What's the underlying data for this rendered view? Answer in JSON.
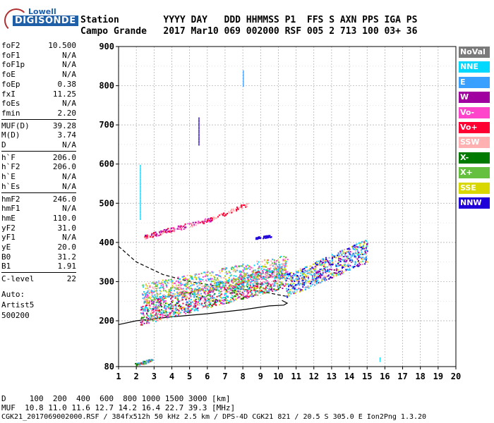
{
  "logo": {
    "line1": "Lowell",
    "line2": "DIGISONDE"
  },
  "header": {
    "labels_row": "Station        YYYY DAY   DDD HHMMSS P1  FFS S AXN PPS IGA PS",
    "values_row": "Campo Grande   2017 Mar10 069 002000 RSF 005 2 713 100 03+ 36"
  },
  "params": [
    {
      "label": "foF2",
      "value": "10.500"
    },
    {
      "label": "foF1",
      "value": "N/A"
    },
    {
      "label": "foF1p",
      "value": "N/A"
    },
    {
      "label": "foE",
      "value": "N/A"
    },
    {
      "label": "foEp",
      "value": "0.38"
    },
    {
      "label": "fxI",
      "value": "11.25"
    },
    {
      "label": "foEs",
      "value": "N/A"
    },
    {
      "label": "fmin",
      "value": "2.20"
    },
    {
      "label": "MUF(D)",
      "value": "39.28"
    },
    {
      "label": "M(D)",
      "value": "3.74"
    },
    {
      "label": "D",
      "value": "N/A"
    },
    {
      "label": "h`F",
      "value": "206.0"
    },
    {
      "label": "h`F2",
      "value": "206.0"
    },
    {
      "label": "h`E",
      "value": "N/A"
    },
    {
      "label": "h`Es",
      "value": "N/A"
    },
    {
      "label": "hmF2",
      "value": "246.0"
    },
    {
      "label": "hmF1",
      "value": "N/A"
    },
    {
      "label": "hmE",
      "value": "110.0"
    },
    {
      "label": "yF2",
      "value": "31.0"
    },
    {
      "label": "yF1",
      "value": "N/A"
    },
    {
      "label": "yE",
      "value": "20.0"
    },
    {
      "label": "B0",
      "value": "31.2"
    },
    {
      "label": "B1",
      "value": "1.91"
    },
    {
      "label": "C-level",
      "value": "22"
    }
  ],
  "autoscale": {
    "line1": "Auto:",
    "line2": "Artist5",
    "line3": "500200"
  },
  "legend": [
    {
      "name": "NoVal",
      "color": "#7a7a7a"
    },
    {
      "name": "NNE",
      "color": "#00d8ff"
    },
    {
      "name": "E",
      "color": "#3aa0ff"
    },
    {
      "name": "W",
      "color": "#a000a0"
    },
    {
      "name": "Vo-",
      "color": "#ff44cc"
    },
    {
      "name": "Vo+",
      "color": "#ff0033"
    },
    {
      "name": "SSW",
      "color": "#ffb0b0"
    },
    {
      "name": "X-",
      "color": "#007a00"
    },
    {
      "name": "X+",
      "color": "#66c040"
    },
    {
      "name": "SSE",
      "color": "#d8d800"
    },
    {
      "name": "NNW",
      "color": "#2000d8"
    }
  ],
  "footer": {
    "d_row": "D     100  200  400  600  800 1000 1500 3000 [km]",
    "muf_row": "MUF  10.8 11.0 11.6 12.7 14.2 16.4 22.7 39.3 [MHz]",
    "file_row": "CGK21_2017069002000.RSF / 384fx512h 50 kHz 2.5 km / DPS-4D CGK21 821 / 20.5 S 305.0 E Ion2Png 1.3.20"
  },
  "chart_data": {
    "type": "scatter",
    "xlim": [
      1,
      20
    ],
    "ylim": [
      80,
      900
    ],
    "xticks": [
      1,
      2,
      3,
      4,
      5,
      6,
      7,
      8,
      9,
      10,
      11,
      12,
      13,
      14,
      15,
      16,
      17,
      18,
      19,
      20
    ],
    "yticks": [
      80,
      200,
      300,
      400,
      500,
      600,
      700,
      800,
      900
    ],
    "grid": true,
    "legend_position": "right",
    "clusters": [
      {
        "name": "F2 trace main",
        "x": [
          2.2,
          10.4
        ],
        "y": [
          205,
          300
        ],
        "band": [
          -15,
          45
        ],
        "count": 1400,
        "colors": [
          "#ffb0b0",
          "#ff0033",
          "#ff44cc",
          "#a000a0",
          "#007a00",
          "#66c040",
          "#d8d800",
          "#3aa0ff",
          "#00d8ff"
        ]
      },
      {
        "name": "Upper F2 band",
        "x": [
          2.3,
          10.5
        ],
        "y": [
          255,
          330
        ],
        "band": [
          -10,
          40
        ],
        "count": 700,
        "colors": [
          "#ffb0b0",
          "#00d8ff",
          "#3aa0ff",
          "#d8d800",
          "#66c040",
          "#ff44cc"
        ]
      },
      {
        "name": "Spread F high freq",
        "x": [
          10.4,
          15.0
        ],
        "y": [
          290,
          380
        ],
        "band": [
          -30,
          30
        ],
        "count": 700,
        "colors": [
          "#ffb0b0",
          "#2000d8",
          "#a000a0",
          "#00d8ff",
          "#3aa0ff",
          "#d8d800"
        ]
      },
      {
        "name": "Second hop",
        "x": [
          2.4,
          6.2
        ],
        "y": [
          415,
          460
        ],
        "band": [
          -6,
          6
        ],
        "count": 160,
        "colors": [
          "#ff0033",
          "#ff44cc",
          "#ffb0b0",
          "#a000a0"
        ]
      },
      {
        "name": "Second hop ext",
        "x": [
          6.2,
          8.3
        ],
        "y": [
          460,
          500
        ],
        "band": [
          -5,
          5
        ],
        "count": 60,
        "colors": [
          "#ff0033",
          "#ffb0b0"
        ]
      },
      {
        "name": "Blue segment",
        "x": [
          8.7,
          9.6
        ],
        "y": [
          412,
          418
        ],
        "band": [
          -3,
          3
        ],
        "count": 40,
        "colors": [
          "#2000d8"
        ]
      },
      {
        "name": "Low echoes",
        "x": [
          1.9,
          2.9
        ],
        "y": [
          86,
          98
        ],
        "band": [
          -4,
          4
        ],
        "count": 60,
        "colors": [
          "#007a00",
          "#ff0033",
          "#3aa0ff",
          "#66c040"
        ]
      }
    ],
    "vertical_streaks": [
      {
        "x": 5.5,
        "y": [
          650,
          720
        ],
        "color": "#2000d8"
      },
      {
        "x": 8.0,
        "y": [
          800,
          840
        ],
        "color": "#3aa0ff"
      },
      {
        "x": 2.2,
        "y": [
          460,
          600
        ],
        "color": "#00d8ff"
      },
      {
        "x": 15.7,
        "y": [
          95,
          105
        ],
        "color": "#00d8ff"
      }
    ],
    "profile_dashed": {
      "x": [
        1.0,
        2.0,
        3.5,
        5.0,
        7.0,
        9.0,
        10.5
      ],
      "y": [
        390,
        350,
        318,
        300,
        285,
        275,
        262
      ]
    },
    "profile_solid": {
      "x": [
        1.0,
        2.0,
        4.0,
        6.0,
        8.0,
        9.5,
        10.3,
        10.5,
        10.2
      ],
      "y": [
        190,
        200,
        210,
        218,
        228,
        238,
        240,
        245,
        252
      ]
    }
  }
}
